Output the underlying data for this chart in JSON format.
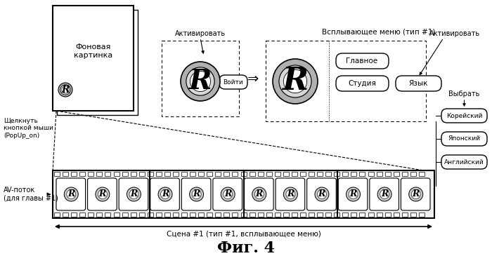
{
  "title": "Фиг. 4",
  "bg_color": "#ffffff",
  "label_fon_kartinka": "Фоновая\nкартинка",
  "label_aktivirovat1": "Активировать",
  "label_vsplyvayushee": "Всплывающее меню (тип #1)",
  "label_aktivirovat2": "Активировать",
  "label_vybrat": "Выбрать",
  "label_click": "Щелкнуть\nкнопкой мыши\n(PopUp_on)",
  "label_av_potok": "AV-поток\n(для главы #1)",
  "label_scena": "Сцена #1 (тип #1, всплывающее меню)",
  "label_войти": "Войти",
  "menu_items": [
    "Главное",
    "Студия",
    "Язык"
  ],
  "lang_items": [
    "Корейский",
    "Японский",
    "Английский"
  ]
}
